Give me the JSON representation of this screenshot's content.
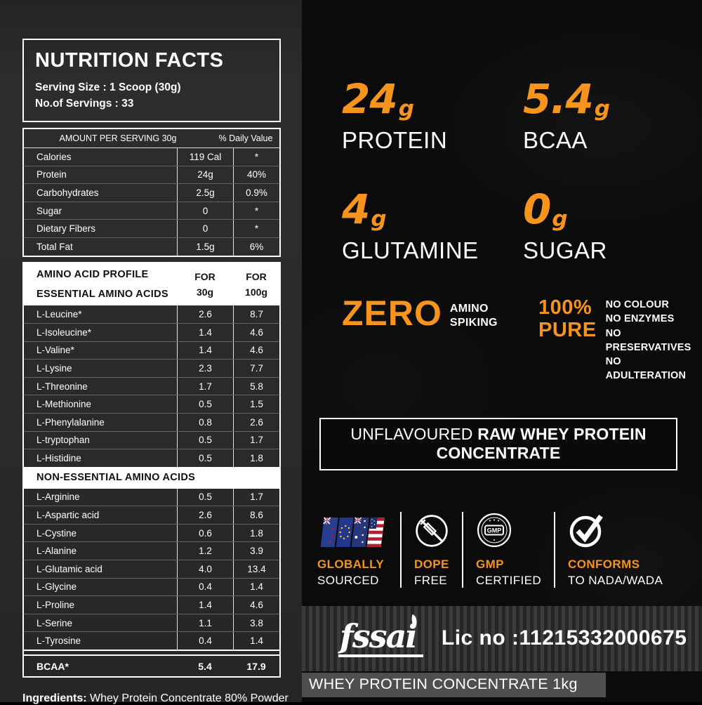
{
  "colors": {
    "accent_orange": "#f7941d",
    "left_bg": "#2b2b2b",
    "right_bg": "#0b0b0b"
  },
  "nutrition_label": {
    "title": "NUTRITION FACTS",
    "serving_size": "Serving Size : 1 Scoop (30g)",
    "servings": "No.of Servings : 33",
    "table": {
      "col1_header": "AMOUNT PER SERVING 30g",
      "col2_header": "% Daily Value",
      "rows": [
        {
          "name": "Calories",
          "amount": "119 Cal",
          "dv": "*"
        },
        {
          "name": "Protein",
          "amount": "24g",
          "dv": "40%"
        },
        {
          "name": "Carbohydrates",
          "amount": "2.5g",
          "dv": "0.9%"
        },
        {
          "name": "Sugar",
          "amount": "0",
          "dv": "*"
        },
        {
          "name": "Dietary Fibers",
          "amount": "0",
          "dv": "*"
        },
        {
          "name": "Total Fat",
          "amount": "1.5g",
          "dv": "6%"
        }
      ]
    },
    "amino": {
      "header_line1": "AMINO ACID PROFILE",
      "header_line2": "ESSENTIAL AMINO ACIDS",
      "col2_top": "FOR",
      "col2_bottom": "30g",
      "col3_top": "FOR",
      "col3_bottom": "100g",
      "essential": [
        {
          "name": "L-Leucine*",
          "per30": "2.6",
          "per100": "8.7"
        },
        {
          "name": "L-Isoleucine*",
          "per30": "1.4",
          "per100": "4.6"
        },
        {
          "name": "L-Valine*",
          "per30": "1.4",
          "per100": "4.6"
        },
        {
          "name": "L-Lysine",
          "per30": "2.3",
          "per100": "7.7"
        },
        {
          "name": "L-Threonine",
          "per30": "1.7",
          "per100": "5.8"
        },
        {
          "name": "L-Methionine",
          "per30": "0.5",
          "per100": "1.5"
        },
        {
          "name": "L-Phenylalanine",
          "per30": "0.8",
          "per100": "2.6"
        },
        {
          "name": "L-tryptophan",
          "per30": "0.5",
          "per100": "1.7"
        },
        {
          "name": "L-Histidine",
          "per30": "0.5",
          "per100": "1.8"
        }
      ],
      "non_essential_header": "NON-ESSENTIAL AMINO ACIDS",
      "non_essential": [
        {
          "name": "L-Arginine",
          "per30": "0.5",
          "per100": "1.7"
        },
        {
          "name": "L-Aspartic acid",
          "per30": "2.6",
          "per100": "8.6"
        },
        {
          "name": "L-Cystine",
          "per30": "0.6",
          "per100": "1.8"
        },
        {
          "name": "L-Alanine",
          "per30": "1.2",
          "per100": "3.9"
        },
        {
          "name": "L-Glutamic acid",
          "per30": "4.0",
          "per100": "13.4"
        },
        {
          "name": "L-Glycine",
          "per30": "0.4",
          "per100": "1.4"
        },
        {
          "name": "L-Proline",
          "per30": "1.4",
          "per100": "4.6"
        },
        {
          "name": "L-Serine",
          "per30": "1.1",
          "per100": "3.8"
        },
        {
          "name": "L-Tyrosine",
          "per30": "0.4",
          "per100": "1.4"
        }
      ],
      "bcaa": {
        "name": "BCAA*",
        "per30": "5.4",
        "per100": "17.9"
      }
    },
    "ingredients_label": "Ingredients:",
    "ingredients_value": " Whey Protein Concentrate 80% Powder"
  },
  "highlights": [
    {
      "value": "24",
      "unit": "g",
      "label": "PROTEIN"
    },
    {
      "value": "5.4",
      "unit": "g",
      "label": "BCAA"
    },
    {
      "value": "4",
      "unit": "g",
      "label": "GLUTAMINE"
    },
    {
      "value": "0",
      "unit": "g",
      "label": "SUGAR"
    }
  ],
  "zero_spiking": {
    "big": "ZERO",
    "line1": "AMINO",
    "line2": "SPIKING"
  },
  "pure": {
    "big_line1": "100%",
    "big_line2": "PURE",
    "items": [
      "NO COLOUR",
      "NO ENZYMES",
      "NO PRESERVATIVES",
      "NO ADULTERATION"
    ]
  },
  "banner": {
    "light": "UNFLAVOURED",
    "bold": "RAW WHEY PROTEIN CONCENTRATE"
  },
  "badges": [
    {
      "icon": "flags-icon",
      "top": "GLOBALLY",
      "bottom": "SOURCED"
    },
    {
      "icon": "dope-free-icon",
      "top": "DOPE",
      "bottom": "FREE"
    },
    {
      "icon": "gmp-badge-icon",
      "icon_text": "GMP",
      "top": "GMP",
      "bottom": "CERTIFIED"
    },
    {
      "icon": "check-icon",
      "top": "CONFORMS",
      "bottom": "TO NADA/WADA"
    }
  ],
  "fssai": {
    "logo_text": "fssai",
    "license": "Lic no :11215332000675"
  },
  "product_bar": "WHEY PROTEIN CONCENTRATE 1kg"
}
